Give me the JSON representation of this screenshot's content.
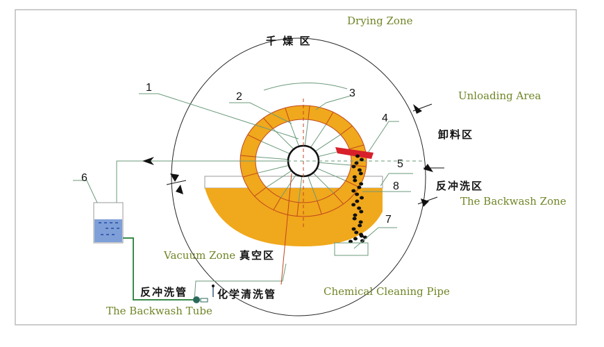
{
  "diagram": {
    "zones": {
      "drying_en": "Drying Zone",
      "drying_cn": "千 燥 区",
      "unloading_en": "Unloading Area",
      "unloading_cn": "卸料区",
      "backwash_cn": "反冲洗区",
      "backwash_en": "The Backwash Zone",
      "vacuum_en": "Vacuum Zone",
      "vacuum_cn": "真空区"
    },
    "pipes": {
      "backwash_tube_cn": "反冲洗管",
      "backwash_tube_en": "The Backwash Tube",
      "chemical_cn": "化学清洗管",
      "chemical_en": "Chemical Cleaning Pipe"
    },
    "callouts": [
      "1",
      "2",
      "3",
      "4",
      "5",
      "6",
      "7",
      "8"
    ],
    "colors": {
      "drum": "#f0a81c",
      "scraper": "#d8202a",
      "liquid": "#7f9fd8",
      "text_en": "#6f8526",
      "leader": "#6a9a7a"
    }
  }
}
